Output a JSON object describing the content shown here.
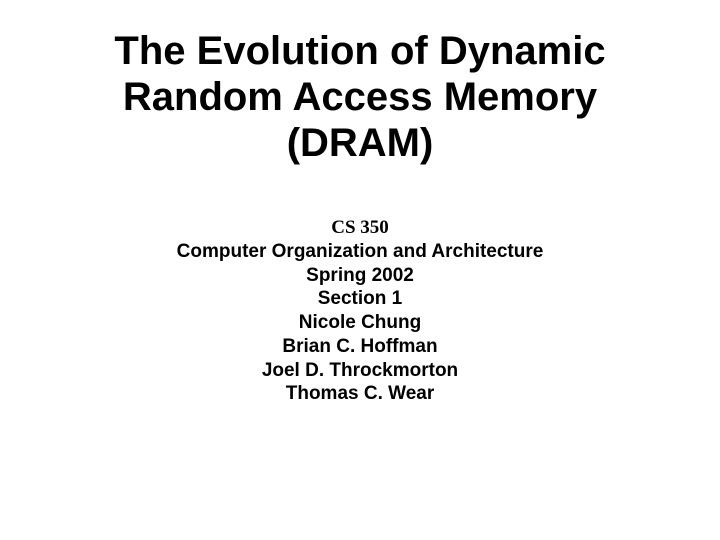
{
  "title": {
    "line1": "The Evolution of Dynamic",
    "line2": "Random Access Memory",
    "line3": "(DRAM)",
    "fontsize": 40,
    "color": "#000000"
  },
  "subtitle": {
    "course_code": "CS 350",
    "course_name": "Computer Organization and Architecture",
    "term": "Spring 2002",
    "section": "Section 1",
    "author1": "Nicole Chung",
    "author2": "Brian C. Hoffman",
    "author3": "Joel D. Throckmorton",
    "author4": "Thomas C. Wear",
    "fontsize": 19,
    "color": "#000000"
  },
  "background_color": "#ffffff"
}
